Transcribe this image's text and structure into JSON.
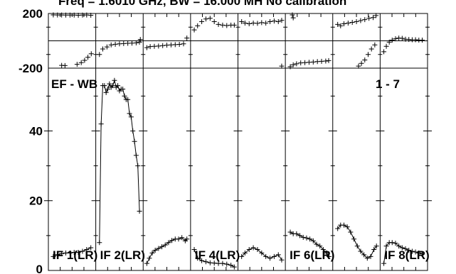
{
  "chart_data": {
    "type": "scatter",
    "title": "Freq = 1.6010 GHz, BW = 16.000 MH   No calibration",
    "baseline_label": "EF - WB",
    "channel_range_label": "1 - 7",
    "phase_panel": {
      "ylim": [
        -200,
        200
      ],
      "y_tick_labels": [
        "200",
        "-200"
      ],
      "y_ticks": [
        200,
        0,
        -200
      ]
    },
    "amplitude_panel": {
      "ylim": [
        0,
        58
      ],
      "y_tick_labels": [
        "0",
        "20",
        "40"
      ],
      "y_ticks": [
        0,
        20,
        40
      ]
    },
    "x_per_if": [
      0,
      1
    ],
    "ifs": [
      {
        "label": "IF 1(LR)",
        "phase": [
          [
            0.05,
            190
          ],
          [
            0.15,
            189
          ],
          [
            0.25,
            189
          ],
          [
            0.35,
            188
          ],
          [
            0.45,
            188
          ],
          [
            0.55,
            188
          ],
          [
            0.65,
            187
          ],
          [
            0.75,
            188
          ],
          [
            0.85,
            189
          ],
          [
            0.95,
            187
          ]
        ],
        "phase_extra": [
          [
            0.25,
            -180
          ],
          [
            0.33,
            -181
          ],
          [
            0.62,
            -172
          ],
          [
            0.72,
            -160
          ],
          [
            0.8,
            -143
          ],
          [
            0.88,
            -120
          ],
          [
            0.96,
            -95
          ]
        ],
        "amp": [
          [
            0.05,
            4
          ],
          [
            0.15,
            4.5
          ],
          [
            0.25,
            4.8
          ],
          [
            0.35,
            5
          ],
          [
            0.45,
            5
          ],
          [
            0.55,
            5.2
          ],
          [
            0.65,
            5.2
          ],
          [
            0.75,
            5.5
          ],
          [
            0.85,
            6
          ],
          [
            0.95,
            6.5
          ]
        ]
      },
      {
        "label": "IF 2(LR)",
        "phase": [
          [
            0.02,
            -100
          ],
          [
            0.1,
            -60
          ],
          [
            0.2,
            -45
          ],
          [
            0.3,
            -30
          ],
          [
            0.4,
            -25
          ],
          [
            0.5,
            -22
          ],
          [
            0.6,
            -20
          ],
          [
            0.7,
            -18
          ],
          [
            0.8,
            -17
          ],
          [
            0.9,
            -15
          ],
          [
            0.98,
            -10
          ],
          [
            1.0,
            10
          ]
        ],
        "amp": [
          [
            0.02,
            8
          ],
          [
            0.06,
            42
          ],
          [
            0.1,
            53
          ],
          [
            0.14,
            53
          ],
          [
            0.18,
            51
          ],
          [
            0.22,
            52
          ],
          [
            0.26,
            53.5
          ],
          [
            0.3,
            52.5
          ],
          [
            0.34,
            53
          ],
          [
            0.38,
            54.5
          ],
          [
            0.42,
            52.5
          ],
          [
            0.46,
            53
          ],
          [
            0.5,
            51.5
          ],
          [
            0.54,
            52
          ],
          [
            0.58,
            52
          ],
          [
            0.62,
            50
          ],
          [
            0.66,
            49
          ],
          [
            0.7,
            49
          ],
          [
            0.74,
            45
          ],
          [
            0.78,
            44
          ],
          [
            0.82,
            40
          ],
          [
            0.86,
            37
          ],
          [
            0.9,
            33
          ],
          [
            0.94,
            30
          ],
          [
            0.98,
            17
          ]
        ]
      },
      {
        "label": "",
        "phase": [
          [
            0.02,
            -50
          ],
          [
            0.1,
            -42
          ],
          [
            0.2,
            -40
          ],
          [
            0.3,
            -38
          ],
          [
            0.4,
            -35
          ],
          [
            0.5,
            -32
          ],
          [
            0.6,
            -30
          ],
          [
            0.7,
            -28
          ],
          [
            0.8,
            -26
          ],
          [
            0.9,
            -22
          ],
          [
            0.98,
            20
          ]
        ],
        "amp": [
          [
            0.02,
            2
          ],
          [
            0.08,
            3.5
          ],
          [
            0.15,
            5
          ],
          [
            0.22,
            5.8
          ],
          [
            0.3,
            6.3
          ],
          [
            0.38,
            6.8
          ],
          [
            0.46,
            7.3
          ],
          [
            0.54,
            8
          ],
          [
            0.62,
            8.6
          ],
          [
            0.7,
            9
          ],
          [
            0.78,
            9
          ],
          [
            0.86,
            9.4
          ],
          [
            0.94,
            8.5
          ],
          [
            0.98,
            9
          ]
        ]
      },
      {
        "label": "IF 4(LR)",
        "phase": [
          [
            0.02,
            80
          ],
          [
            0.1,
            110
          ],
          [
            0.2,
            140
          ],
          [
            0.3,
            160
          ],
          [
            0.4,
            165
          ],
          [
            0.5,
            140
          ],
          [
            0.6,
            120
          ],
          [
            0.7,
            115
          ],
          [
            0.8,
            112
          ],
          [
            0.9,
            115
          ],
          [
            0.98,
            115
          ]
        ],
        "amp": [
          [
            0.02,
            6
          ],
          [
            0.1,
            3.5
          ],
          [
            0.2,
            2.8
          ],
          [
            0.3,
            2.5
          ],
          [
            0.4,
            2.2
          ],
          [
            0.5,
            2.1
          ],
          [
            0.6,
            2
          ],
          [
            0.7,
            2
          ],
          [
            0.8,
            1.8
          ],
          [
            0.9,
            1.5
          ],
          [
            0.98,
            1
          ]
        ]
      },
      {
        "label": "",
        "phase": [
          [
            0.02,
            140
          ],
          [
            0.1,
            130
          ],
          [
            0.2,
            125
          ],
          [
            0.3,
            130
          ],
          [
            0.4,
            128
          ],
          [
            0.5,
            133
          ],
          [
            0.6,
            130
          ],
          [
            0.7,
            140
          ],
          [
            0.8,
            145
          ],
          [
            0.9,
            140
          ],
          [
            0.98,
            150
          ]
        ],
        "phase_extra": [
          [
            0.98,
            -185
          ]
        ],
        "amp": [
          [
            0.02,
            4
          ],
          [
            0.1,
            5
          ],
          [
            0.2,
            6
          ],
          [
            0.3,
            6.5
          ],
          [
            0.4,
            6
          ],
          [
            0.5,
            5
          ],
          [
            0.6,
            4
          ],
          [
            0.7,
            3.5
          ],
          [
            0.8,
            4
          ],
          [
            0.9,
            4.5
          ],
          [
            0.98,
            3
          ]
        ]
      },
      {
        "label": "IF 6(LR)",
        "phase": [
          [
            0.05,
            -190
          ],
          [
            0.12,
            -175
          ],
          [
            0.2,
            -168
          ],
          [
            0.3,
            -162
          ],
          [
            0.4,
            -160
          ],
          [
            0.5,
            -157
          ],
          [
            0.6,
            -155
          ],
          [
            0.7,
            -152
          ],
          [
            0.8,
            -150
          ],
          [
            0.9,
            -148
          ],
          [
            0.97,
            -145
          ]
        ],
        "phase_extra": [
          [
            0.1,
            195
          ],
          [
            0.12,
            168
          ]
        ],
        "amp": [
          [
            0.05,
            11
          ],
          [
            0.12,
            10.5
          ],
          [
            0.2,
            10.5
          ],
          [
            0.28,
            10
          ],
          [
            0.36,
            9.5
          ],
          [
            0.44,
            9.3
          ],
          [
            0.52,
            9
          ],
          [
            0.6,
            8.5
          ],
          [
            0.68,
            7.5
          ],
          [
            0.76,
            7
          ],
          [
            0.84,
            6
          ],
          [
            0.92,
            5
          ],
          [
            0.98,
            4
          ]
        ]
      },
      {
        "label": "",
        "phase": [
          [
            0.05,
            120
          ],
          [
            0.12,
            110
          ],
          [
            0.2,
            125
          ],
          [
            0.3,
            130
          ],
          [
            0.4,
            135
          ],
          [
            0.5,
            140
          ],
          [
            0.6,
            148
          ],
          [
            0.7,
            155
          ],
          [
            0.8,
            165
          ],
          [
            0.9,
            170
          ],
          [
            0.97,
            185
          ]
        ],
        "phase_extra": [
          [
            0.55,
            -185
          ],
          [
            0.62,
            -165
          ],
          [
            0.7,
            -140
          ],
          [
            0.78,
            -100
          ],
          [
            0.86,
            -60
          ],
          [
            0.94,
            -30
          ]
        ],
        "amp": [
          [
            0.05,
            12
          ],
          [
            0.12,
            13
          ],
          [
            0.2,
            13
          ],
          [
            0.28,
            12.5
          ],
          [
            0.36,
            11
          ],
          [
            0.44,
            9
          ],
          [
            0.52,
            7
          ],
          [
            0.6,
            5.5
          ],
          [
            0.68,
            4.5
          ],
          [
            0.76,
            3.5
          ],
          [
            0.84,
            4
          ],
          [
            0.92,
            6
          ],
          [
            0.98,
            7
          ]
        ]
      },
      {
        "label": "IF 8(LR)",
        "phase": [
          [
            0.02,
            -80
          ],
          [
            0.08,
            -40
          ],
          [
            0.15,
            -10
          ],
          [
            0.22,
            5
          ],
          [
            0.3,
            15
          ],
          [
            0.38,
            20
          ],
          [
            0.46,
            18
          ],
          [
            0.54,
            12
          ],
          [
            0.62,
            10
          ],
          [
            0.7,
            8
          ],
          [
            0.78,
            8
          ],
          [
            0.86,
            5
          ],
          [
            0.94,
            5
          ]
        ],
        "amp": [
          [
            0.02,
            2
          ],
          [
            0.08,
            7
          ],
          [
            0.15,
            8
          ],
          [
            0.22,
            8
          ],
          [
            0.3,
            7.8
          ],
          [
            0.38,
            7
          ],
          [
            0.46,
            6.5
          ],
          [
            0.54,
            6.2
          ],
          [
            0.62,
            5.8
          ],
          [
            0.7,
            5.5
          ],
          [
            0.78,
            5.3
          ],
          [
            0.86,
            5
          ],
          [
            0.94,
            4.8
          ]
        ]
      }
    ]
  }
}
